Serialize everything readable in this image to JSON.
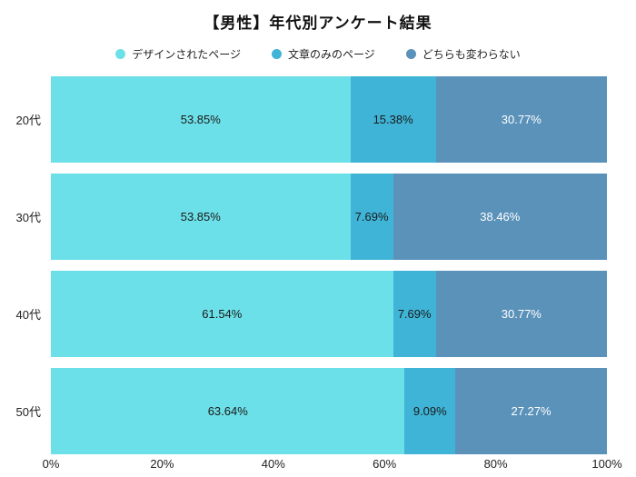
{
  "chart_data": {
    "type": "bar",
    "variant": "horizontal-stacked-100",
    "title": "【男性】年代別アンケート結果",
    "categories": [
      "20代",
      "30代",
      "40代",
      "50代"
    ],
    "series": [
      {
        "name": "デザインされたページ",
        "color": "#6ce0e8",
        "label_color": "#1a1a1a",
        "values": [
          53.85,
          53.85,
          61.54,
          63.64
        ]
      },
      {
        "name": "文章のみのページ",
        "color": "#3fb4d7",
        "label_color": "#1a1a1a",
        "values": [
          15.38,
          7.69,
          7.69,
          9.09
        ]
      },
      {
        "name": "どちらも変わらない",
        "color": "#5b92ba",
        "label_color": "#ffffff",
        "values": [
          30.77,
          38.46,
          30.77,
          27.27
        ]
      }
    ],
    "x_ticks": [
      "0%",
      "20%",
      "40%",
      "60%",
      "80%",
      "100%"
    ],
    "xlim": [
      0,
      100
    ],
    "value_suffix": "%",
    "value_decimals": 2,
    "legend_position": "top",
    "grid": false,
    "background": "#ffffff"
  }
}
